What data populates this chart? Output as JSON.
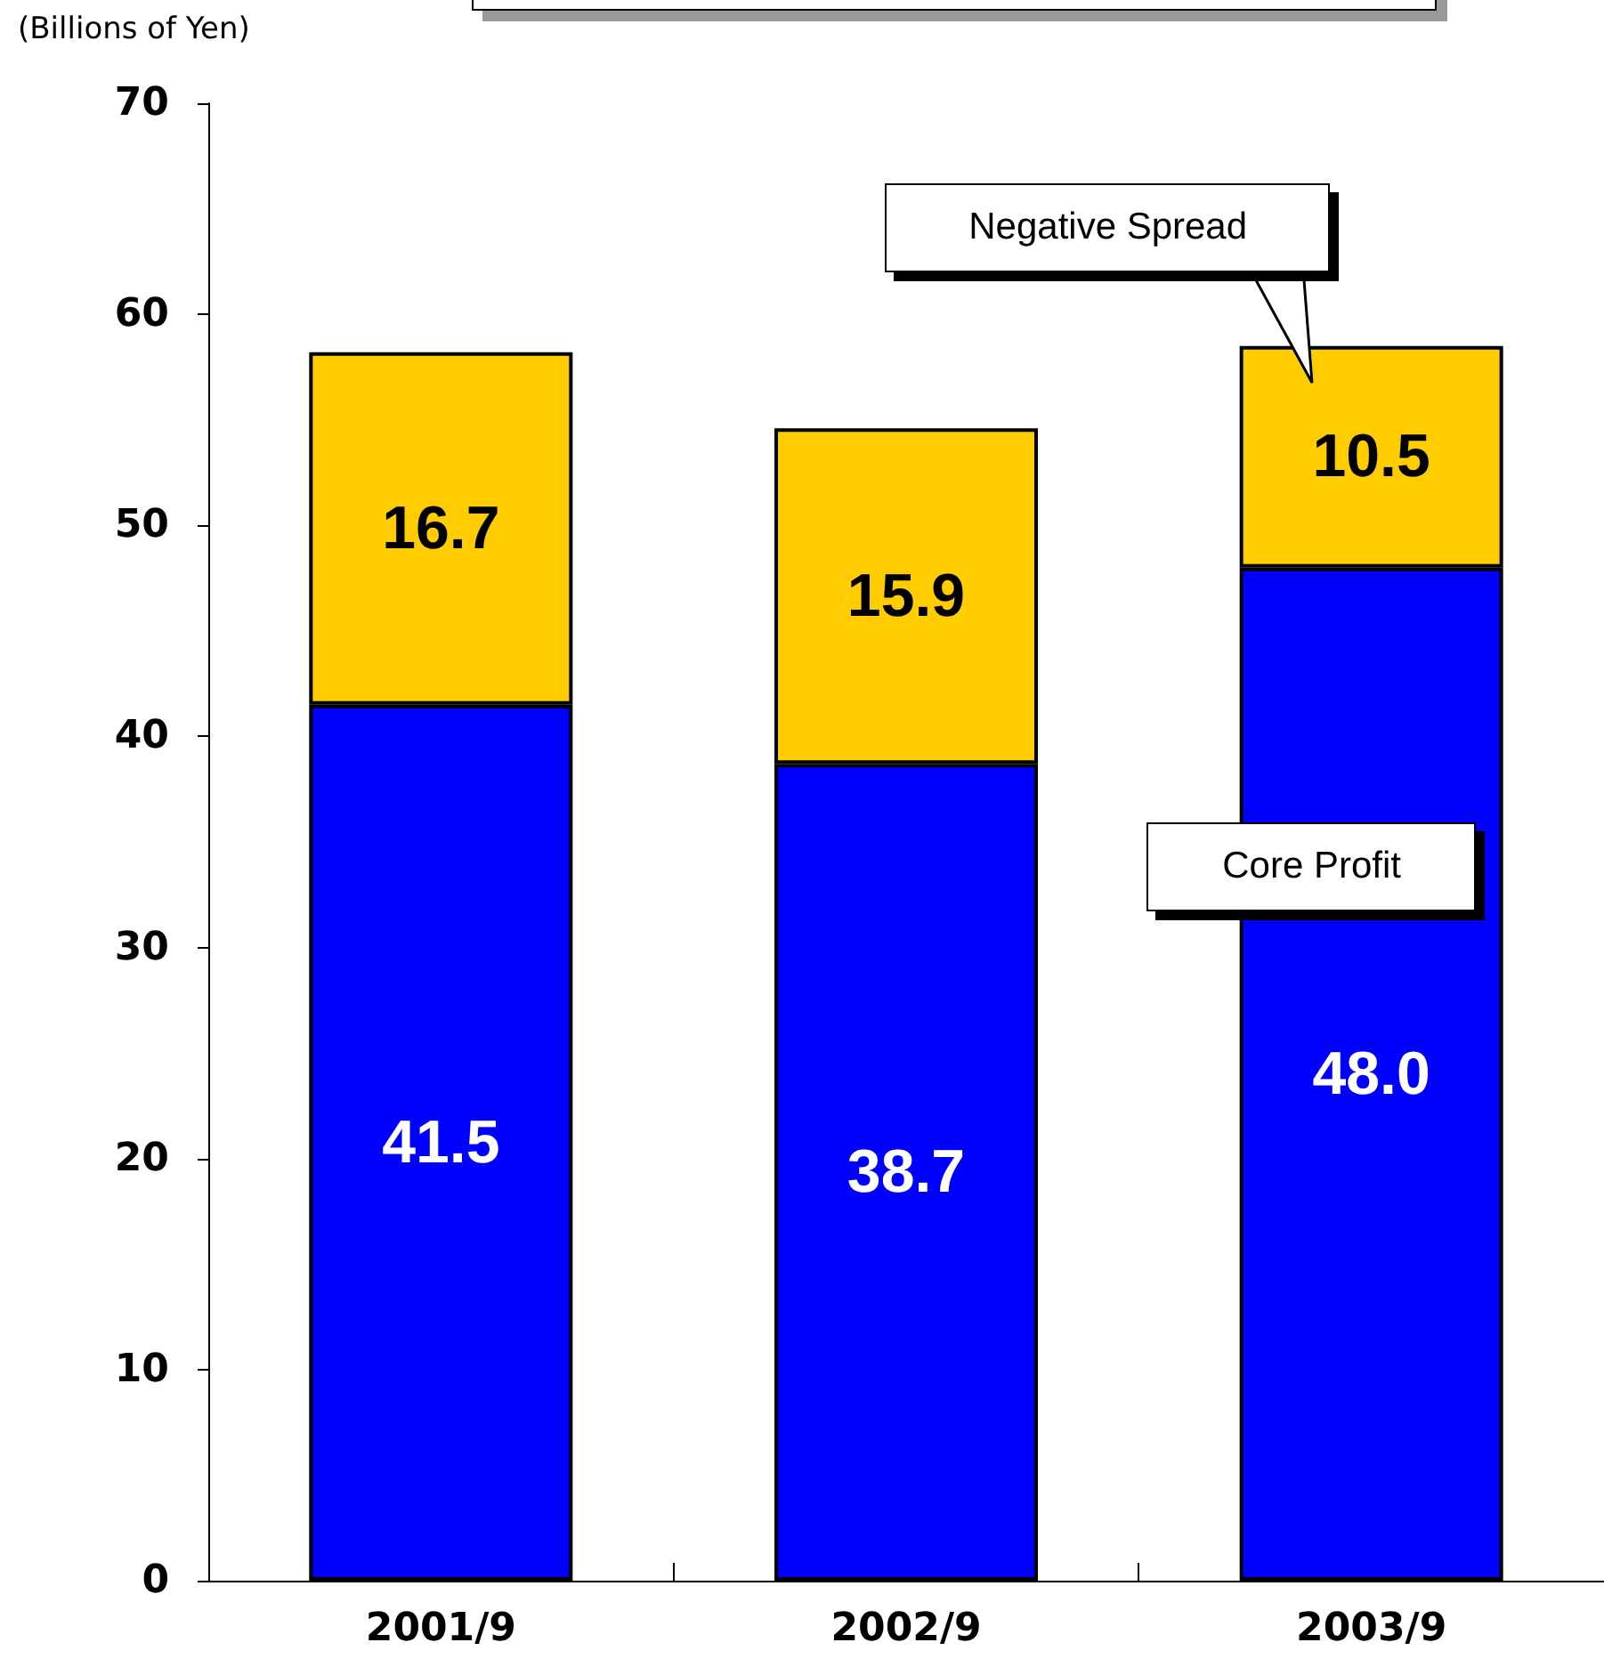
{
  "chart_data": {
    "type": "bar",
    "ylabel": "(Billions of Yen)",
    "categories": [
      "2001/9",
      "2002/9",
      "2003/9"
    ],
    "stacked": true,
    "data_labels": true,
    "legend": false,
    "grid": false,
    "series": [
      {
        "name": "Core Profit",
        "color": "#0000ff",
        "values": [
          41.5,
          38.7,
          48.0
        ],
        "value_labels": [
          "41.5",
          "38.7",
          "48.0"
        ]
      },
      {
        "name": "Negative Spread",
        "color": "#ffcc00",
        "values": [
          16.7,
          15.9,
          10.5
        ],
        "value_labels": [
          "16.7",
          "15.9",
          "10.5"
        ]
      }
    ],
    "ylim": [
      0,
      70
    ],
    "yticks": [
      0,
      10,
      20,
      30,
      40,
      50,
      60,
      70
    ]
  }
}
